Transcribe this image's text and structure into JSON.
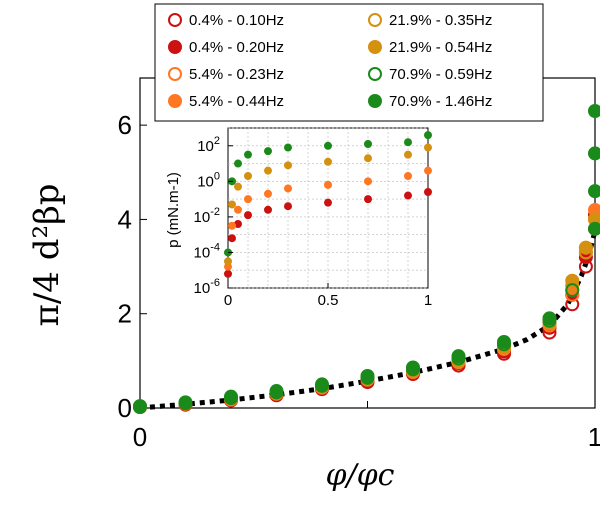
{
  "chart_data": [
    {
      "type": "scatter",
      "xlabel": "φ/φc",
      "ylabel": "π/4 d²βp",
      "xlim": [
        0,
        1
      ],
      "ylim": [
        0,
        7
      ],
      "xticks": [
        "0",
        "1"
      ],
      "yticks": [
        "0",
        "2",
        "4",
        "6"
      ],
      "grid": false,
      "legend": "top",
      "series": [
        {
          "name": "0.4% - 0.10Hz",
          "color": "#cc1111",
          "marker": "open-circle",
          "x": [
            0.0,
            0.1,
            0.2,
            0.3,
            0.4,
            0.5,
            0.6,
            0.7,
            0.8,
            0.9,
            0.95,
            0.98,
            1.0
          ],
          "y": [
            0.02,
            0.08,
            0.17,
            0.28,
            0.4,
            0.55,
            0.72,
            0.9,
            1.15,
            1.6,
            2.2,
            3.0,
            3.8
          ]
        },
        {
          "name": "0.4% - 0.20Hz",
          "color": "#cc1111",
          "marker": "filled-circle",
          "x": [
            0.0,
            0.1,
            0.2,
            0.3,
            0.4,
            0.5,
            0.6,
            0.7,
            0.8,
            0.9,
            0.95,
            0.98,
            1.0
          ],
          "y": [
            0.02,
            0.07,
            0.16,
            0.27,
            0.42,
            0.58,
            0.74,
            0.95,
            1.2,
            1.7,
            2.4,
            3.2,
            4.1
          ]
        },
        {
          "name": "5.4% - 0.23Hz",
          "color": "#ff7722",
          "marker": "open-circle",
          "x": [
            0.0,
            0.1,
            0.2,
            0.3,
            0.4,
            0.5,
            0.6,
            0.7,
            0.8,
            0.9,
            0.95,
            0.98,
            1.0
          ],
          "y": [
            0.02,
            0.09,
            0.18,
            0.3,
            0.43,
            0.6,
            0.76,
            0.97,
            1.25,
            1.75,
            2.4,
            3.3,
            4.0
          ]
        },
        {
          "name": "5.4% - 0.44Hz",
          "color": "#ff7722",
          "marker": "filled-circle",
          "x": [
            0.0,
            0.1,
            0.2,
            0.3,
            0.4,
            0.5,
            0.6,
            0.7,
            0.8,
            0.9,
            0.95,
            0.98,
            1.0
          ],
          "y": [
            0.03,
            0.1,
            0.2,
            0.32,
            0.45,
            0.62,
            0.8,
            1.0,
            1.3,
            1.8,
            2.5,
            3.4,
            4.2
          ]
        },
        {
          "name": "21.9% - 0.35Hz",
          "color": "#d4900f",
          "marker": "open-circle",
          "x": [
            0.0,
            0.1,
            0.2,
            0.3,
            0.4,
            0.5,
            0.6,
            0.7,
            0.8,
            0.9,
            0.95,
            0.98,
            1.0
          ],
          "y": [
            0.02,
            0.09,
            0.19,
            0.31,
            0.44,
            0.6,
            0.78,
            0.98,
            1.28,
            1.8,
            2.6,
            3.3,
            4.0
          ]
        },
        {
          "name": "21.9% - 0.54Hz",
          "color": "#d4900f",
          "marker": "filled-circle",
          "x": [
            0.0,
            0.1,
            0.2,
            0.3,
            0.4,
            0.5,
            0.6,
            0.7,
            0.8,
            0.9,
            0.95,
            0.98,
            1.0
          ],
          "y": [
            0.03,
            0.1,
            0.2,
            0.33,
            0.46,
            0.63,
            0.82,
            1.02,
            1.35,
            1.9,
            2.7,
            3.4,
            4.0
          ]
        },
        {
          "name": "70.9% - 0.59Hz",
          "color": "#1a8a1a",
          "marker": "open-circle",
          "x": [
            0.0,
            0.1,
            0.2,
            0.3,
            0.4,
            0.5,
            0.6,
            0.7,
            0.8,
            0.9,
            0.95
          ],
          "y": [
            0.02,
            0.1,
            0.21,
            0.33,
            0.47,
            0.64,
            0.82,
            1.05,
            1.35,
            1.85,
            2.5
          ]
        },
        {
          "name": "70.9% - 1.46Hz",
          "color": "#1a8a1a",
          "marker": "filled-circle",
          "x": [
            0.0,
            0.1,
            0.2,
            0.3,
            0.4,
            0.5,
            0.6,
            0.7,
            0.8,
            0.9,
            1.0,
            1.0,
            1.0,
            1.0
          ],
          "y": [
            0.04,
            0.12,
            0.24,
            0.36,
            0.5,
            0.68,
            0.86,
            1.1,
            1.4,
            1.9,
            3.8,
            4.6,
            5.4,
            6.3
          ]
        }
      ],
      "fit": {
        "style": "black-dotted",
        "x": [
          0.0,
          0.1,
          0.2,
          0.3,
          0.4,
          0.5,
          0.6,
          0.7,
          0.8,
          0.85,
          0.9,
          0.94,
          0.97,
          0.985,
          1.0
        ],
        "y": [
          0.0,
          0.08,
          0.17,
          0.28,
          0.41,
          0.57,
          0.75,
          0.97,
          1.25,
          1.45,
          1.75,
          2.2,
          2.8,
          3.2,
          3.75
        ]
      }
    },
    {
      "type": "scatter",
      "xlabel": "p (mN.m-1)",
      "ylabel": "",
      "xlim": [
        0,
        1
      ],
      "ylim": [
        -6,
        3
      ],
      "yscale": "log",
      "xticks": [
        "0",
        "0.5",
        "1"
      ],
      "yticks": [
        {
          "base": "10",
          "exp": "-6"
        },
        {
          "base": "10",
          "exp": "-4"
        },
        {
          "base": "10",
          "exp": "-2"
        },
        {
          "base": "10",
          "exp": "0"
        },
        {
          "base": "10",
          "exp": "2"
        }
      ],
      "grid": true,
      "series": [
        {
          "color": "#cc1111",
          "log10y": [
            -5.2,
            -3.2,
            -2.4,
            -1.9,
            -1.6,
            -1.4,
            -1.2,
            -1.0,
            -0.8,
            -0.6
          ]
        },
        {
          "color": "#ff7722",
          "log10y": [
            -4.8,
            -2.5,
            -1.6,
            -1.0,
            -0.7,
            -0.4,
            -0.2,
            0.0,
            0.3,
            0.6
          ]
        },
        {
          "color": "#d4900f",
          "log10y": [
            -4.5,
            -1.3,
            -0.3,
            0.3,
            0.6,
            0.9,
            1.1,
            1.3,
            1.5,
            1.9
          ]
        },
        {
          "color": "#1a8a1a",
          "log10y": [
            -4.0,
            0.0,
            1.0,
            1.5,
            1.7,
            1.9,
            2.0,
            2.1,
            2.2,
            2.6
          ]
        }
      ],
      "x": [
        0.0,
        0.02,
        0.05,
        0.1,
        0.2,
        0.3,
        0.5,
        0.7,
        0.9,
        1.0
      ]
    }
  ]
}
